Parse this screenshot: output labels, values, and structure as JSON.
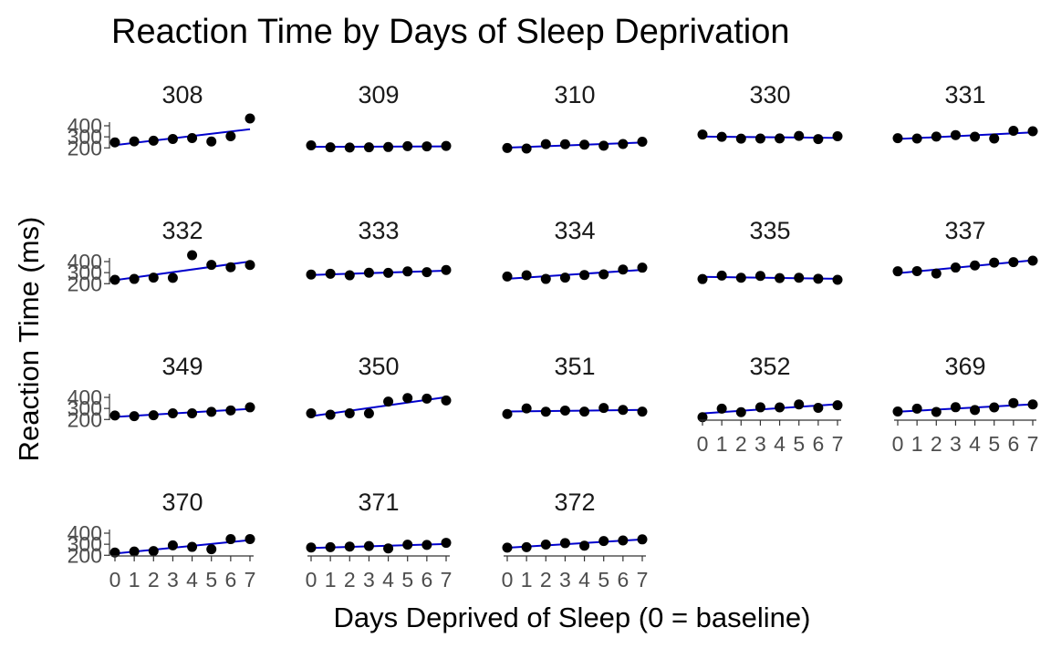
{
  "chart_data": {
    "type": "scatter",
    "title": "Reaction Time by Days of Sleep Deprivation",
    "xlabel": "Days Deprived of Sleep (0 = baseline)",
    "ylabel": "Reaction Time (ms)",
    "x": [
      0,
      1,
      2,
      3,
      4,
      5,
      6,
      7
    ],
    "x_ticks": [
      "0",
      "1",
      "2",
      "3",
      "4",
      "5",
      "6",
      "7"
    ],
    "y_ticks": [
      "200",
      "300",
      "400"
    ],
    "ylim": [
      194,
      466
    ],
    "grid": false,
    "trend_line": "linear fit per panel",
    "colors": {
      "points": "#000000",
      "trend_line": "#0000cc",
      "axis": "#333333"
    },
    "panels": [
      {
        "subject": "308",
        "values": [
          250,
          259,
          265,
          281,
          289,
          258,
          305,
          466
        ]
      },
      {
        "subject": "309",
        "values": [
          223,
          205,
          203,
          205,
          208,
          216,
          214,
          218
        ]
      },
      {
        "subject": "310",
        "values": [
          199,
          194,
          234,
          233,
          229,
          220,
          235,
          256
        ]
      },
      {
        "subject": "330",
        "values": [
          321,
          300,
          284,
          285,
          286,
          308,
          280,
          305
        ]
      },
      {
        "subject": "331",
        "values": [
          288,
          285,
          302,
          316,
          301,
          285,
          355,
          351
        ]
      },
      {
        "subject": "332",
        "values": [
          235,
          243,
          255,
          253,
          458,
          370,
          349,
          369
        ]
      },
      {
        "subject": "333",
        "values": [
          283,
          290,
          276,
          299,
          298,
          311,
          304,
          324
        ]
      },
      {
        "subject": "334",
        "values": [
          265,
          276,
          243,
          255,
          279,
          285,
          328,
          345
        ]
      },
      {
        "subject": "335",
        "values": [
          242,
          273,
          254,
          270,
          251,
          254,
          245,
          235
        ]
      },
      {
        "subject": "337",
        "values": [
          312,
          314,
          292,
          346,
          365,
          391,
          395,
          408
        ]
      },
      {
        "subject": "349",
        "values": [
          236,
          230,
          238,
          256,
          256,
          269,
          282,
          310
        ]
      },
      {
        "subject": "350",
        "values": [
          256,
          243,
          256,
          255,
          362,
          394,
          389,
          372
        ]
      },
      {
        "subject": "351",
        "values": [
          250,
          300,
          270,
          281,
          271,
          304,
          287,
          271
        ]
      },
      {
        "subject": "352",
        "values": [
          221,
          298,
          266,
          310,
          309,
          336,
          305,
          329
        ]
      },
      {
        "subject": "369",
        "values": [
          272,
          298,
          268,
          311,
          286,
          309,
          349,
          336
        ]
      },
      {
        "subject": "370",
        "values": [
          225,
          234,
          238,
          290,
          276,
          255,
          346,
          347
        ]
      },
      {
        "subject": "371",
        "values": [
          270,
          273,
          279,
          284,
          262,
          296,
          294,
          313
        ]
      },
      {
        "subject": "372",
        "values": [
          269,
          273,
          297,
          310,
          287,
          329,
          334,
          344
        ]
      }
    ]
  }
}
